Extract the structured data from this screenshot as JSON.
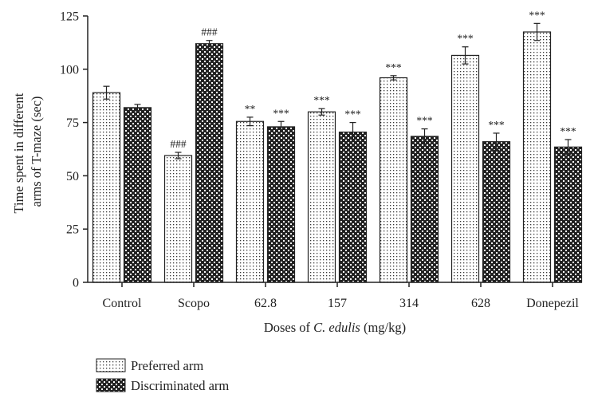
{
  "chart_data": {
    "type": "bar",
    "categories": [
      "Control",
      "Scopo",
      "62.8",
      "157",
      "314",
      "628",
      "Donepezil"
    ],
    "series": [
      {
        "name": "Preferred arm",
        "pattern": "dots",
        "values": [
          89,
          59.5,
          75.5,
          80,
          96,
          106.5,
          117.5
        ],
        "errors": [
          3,
          1.5,
          2,
          1.5,
          1,
          4,
          4
        ],
        "annotations": [
          "",
          "###",
          "**",
          "***",
          "***",
          "***",
          "***"
        ]
      },
      {
        "name": "Discriminated arm",
        "pattern": "checker",
        "values": [
          82,
          112,
          73,
          70.5,
          68.5,
          66,
          63.5
        ],
        "errors": [
          1.5,
          1.5,
          2.5,
          4.5,
          3.5,
          4,
          3.5
        ],
        "annotations": [
          "",
          "###",
          "***",
          "***",
          "***",
          "***",
          "***"
        ]
      }
    ],
    "ylim": [
      0,
      125
    ],
    "yticks": [
      "0",
      "25",
      "50",
      "75",
      "100",
      "125"
    ],
    "ylabel_line1": "Time spent in different",
    "ylabel_line2": "arms of T-maze (sec)",
    "xlabel_prefix": "Doses of ",
    "xlabel_italic": "C. edulis",
    "xlabel_suffix": " (mg/kg)",
    "grid": false,
    "legend_position": "bottom-left",
    "colors": {
      "ink": "#222222",
      "fill": "#ffffff"
    }
  }
}
